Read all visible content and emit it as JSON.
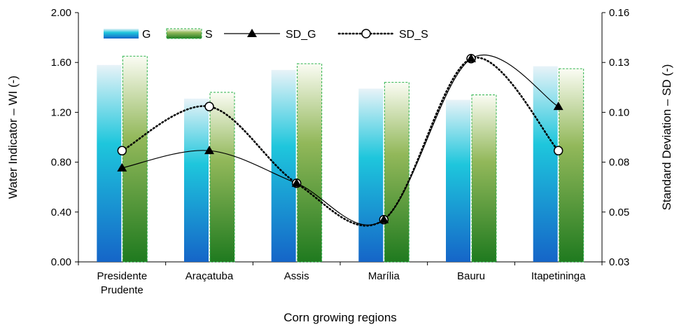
{
  "chart_data": {
    "type": "bar",
    "categories": [
      [
        "Presidente",
        "Prudente"
      ],
      [
        "Araçatuba"
      ],
      [
        "Assis"
      ],
      [
        "Marília"
      ],
      [
        "Bauru"
      ],
      [
        "Itapetininga"
      ]
    ],
    "series": [
      {
        "name": "G",
        "kind": "bar",
        "axis": "left",
        "values": [
          1.58,
          1.31,
          1.54,
          1.39,
          1.3,
          1.57
        ]
      },
      {
        "name": "S",
        "kind": "bar",
        "axis": "left",
        "values": [
          1.65,
          1.36,
          1.59,
          1.44,
          1.34,
          1.55
        ]
      },
      {
        "name": "SD_G",
        "kind": "line",
        "axis": "right",
        "values": [
          0.079,
          0.088,
          0.071,
          0.052,
          0.136,
          0.111
        ]
      },
      {
        "name": "SD_S",
        "kind": "line",
        "axis": "right",
        "values": [
          0.088,
          0.111,
          0.071,
          0.052,
          0.136,
          0.088
        ]
      }
    ],
    "xlabel": "Corn growing regions",
    "ylabel": "Water Indicator – WI (-)",
    "y2label": "Standard Deviation – SD (-)",
    "ylim": [
      0,
      2.0
    ],
    "y2lim": [
      0.03,
      0.16
    ],
    "yticks": [
      "0.00",
      "0.40",
      "0.80",
      "1.20",
      "1.60",
      "2.00"
    ],
    "y2ticks": [
      "0.03",
      "0.05",
      "0.08",
      "0.10",
      "0.13",
      "0.16"
    ],
    "legend_position": "top-left inside",
    "colors": {
      "G_top": "#e8f3f8",
      "G_mid": "#1ec6dc",
      "G_bottom": "#1565c8",
      "S_top": "#fbfcf4",
      "S_mid": "#92b85a",
      "S_bottom": "#1f7a1f",
      "S_border": "#2ab24a"
    }
  }
}
